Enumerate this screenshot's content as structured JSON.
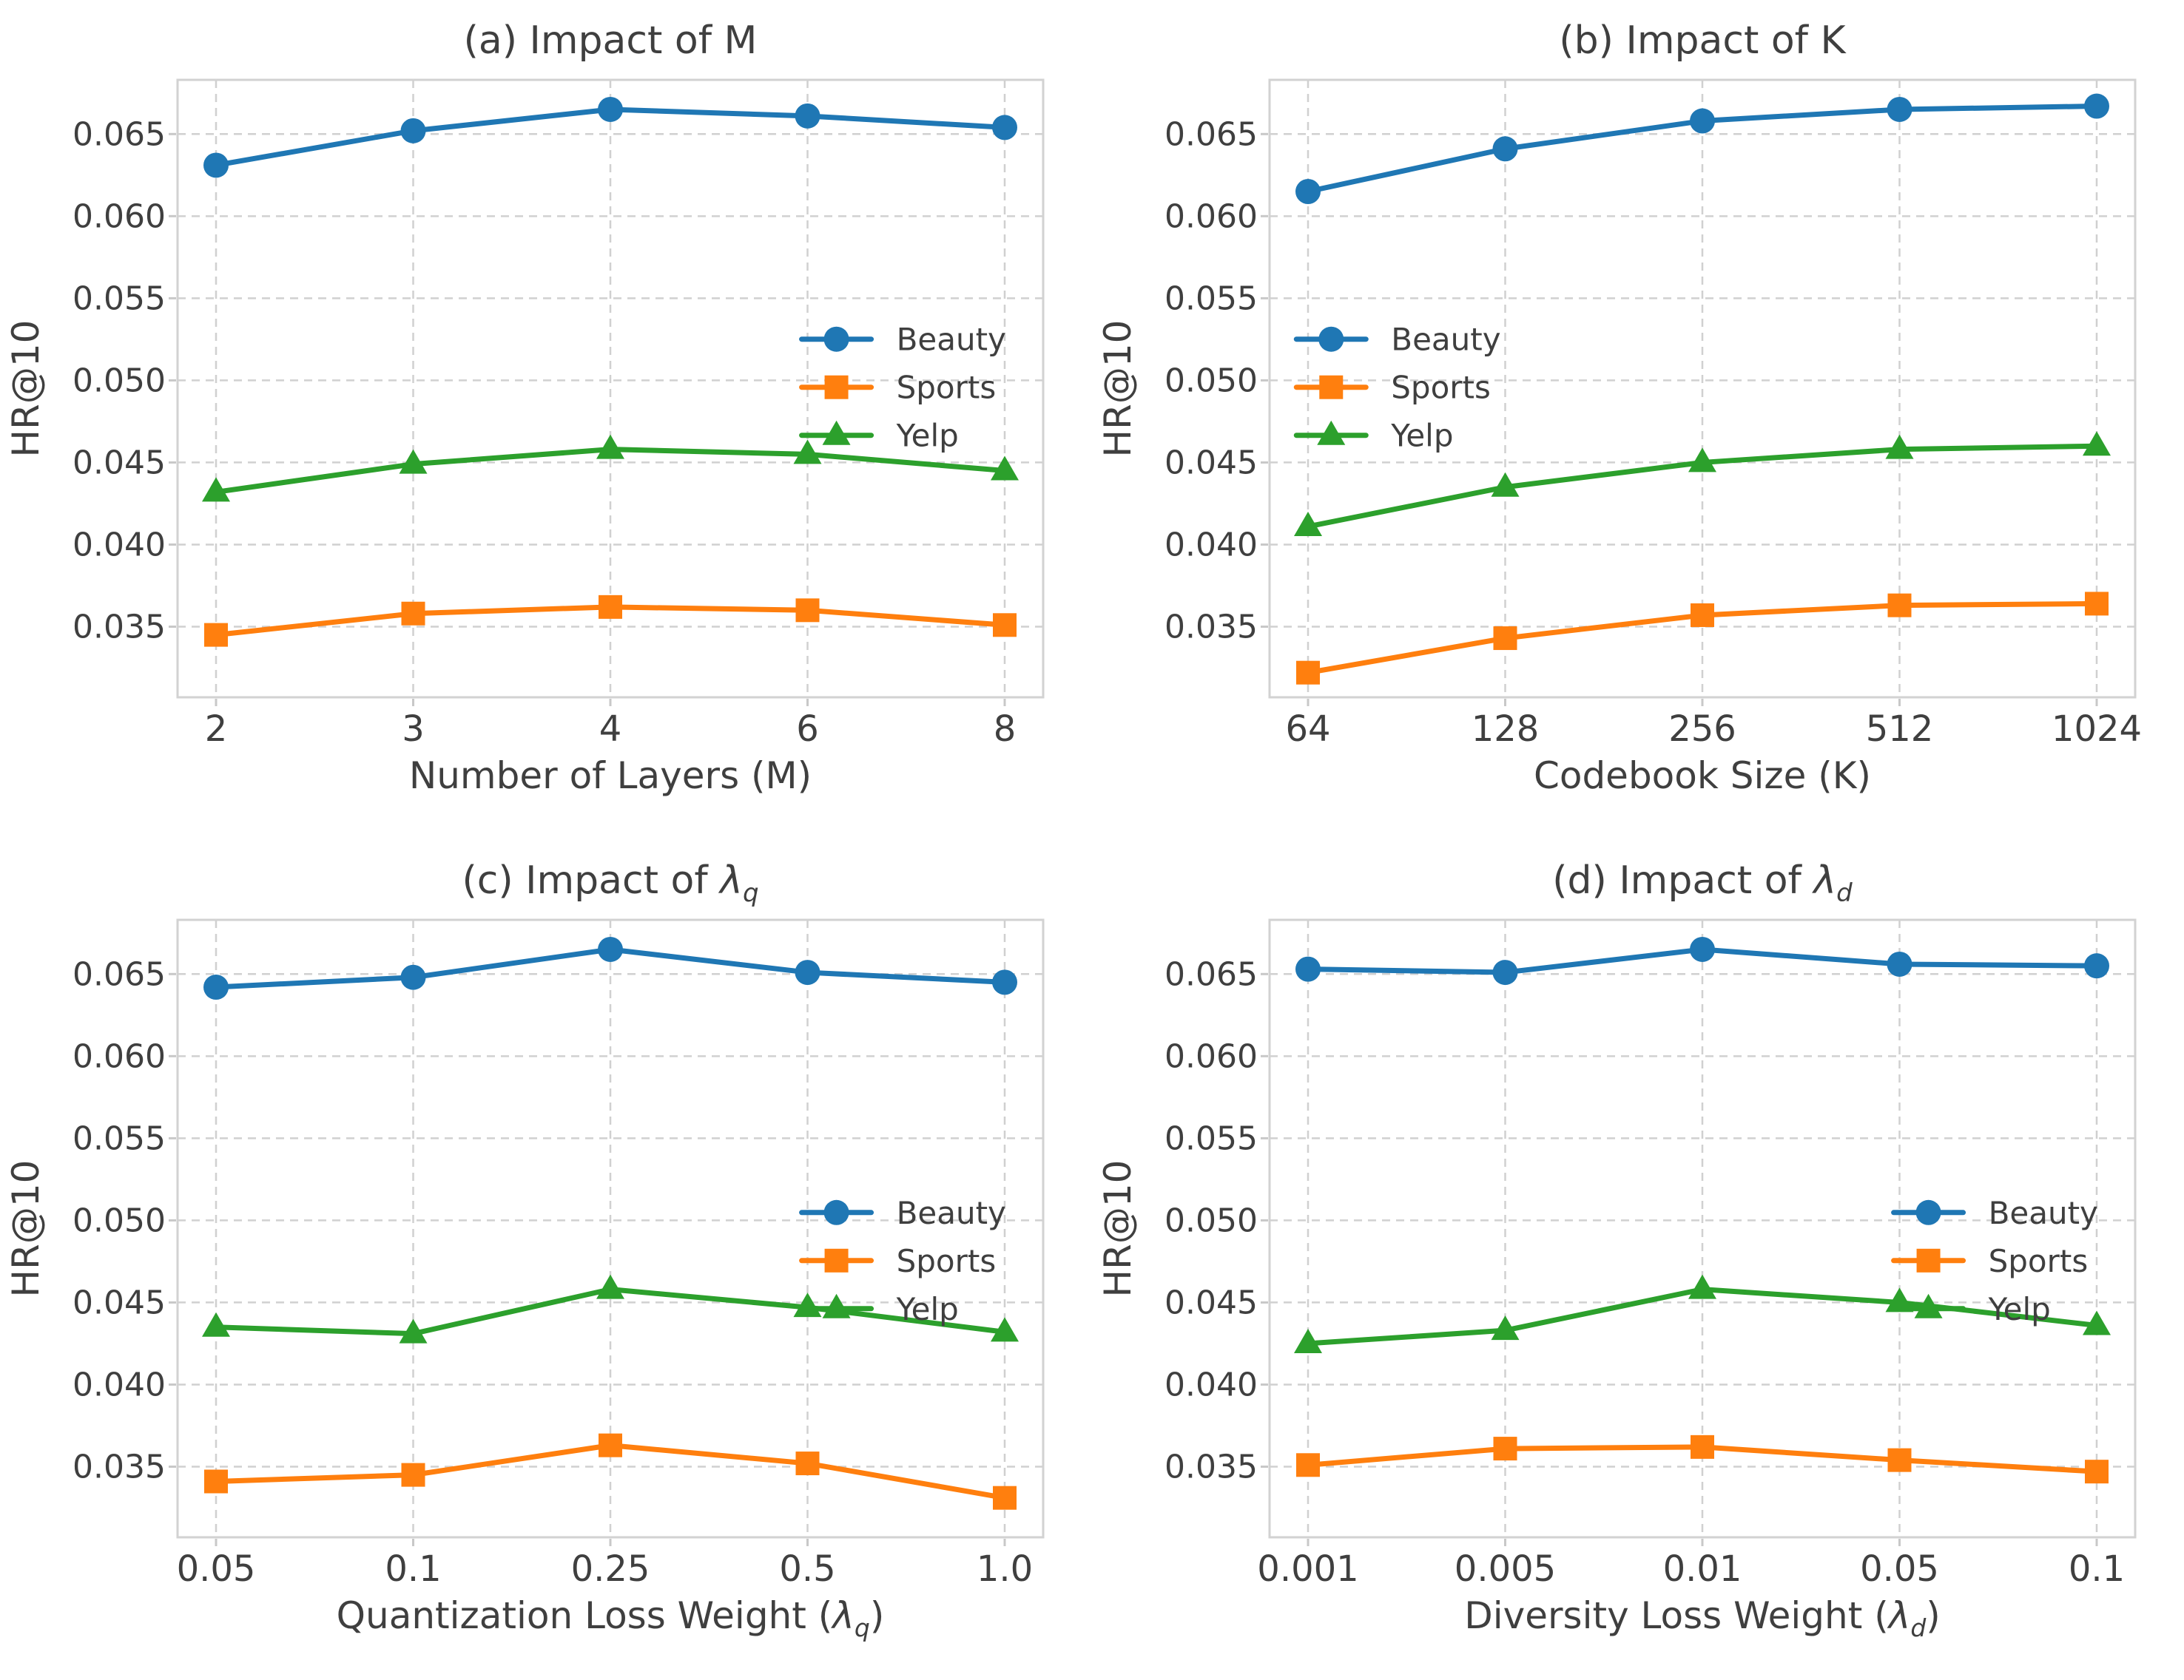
{
  "page": {
    "background": "#ffffff"
  },
  "figure": {
    "text_color": "#3f3f3f",
    "grid_color": "#d0d0d0",
    "spine_color": "#d2d2d2",
    "series_colors": {
      "Beauty": "#1f77b4",
      "Sports": "#ff7f0e",
      "Yelp": "#2ca02c"
    }
  },
  "chart_data": [
    {
      "id": "a",
      "type": "line",
      "title": "(a) Impact of M",
      "xlabel": "Number of Layers (M)",
      "ylabel": "HR@10",
      "categories": [
        "2",
        "3",
        "4",
        "6",
        "8"
      ],
      "yticks": [
        0.035,
        0.04,
        0.045,
        0.05,
        0.055,
        0.06,
        0.065
      ],
      "ytick_labels": [
        "0.035",
        "0.040",
        "0.045",
        "0.050",
        "0.055",
        "0.060",
        "0.065"
      ],
      "ylim": [
        0.0307,
        0.0683
      ],
      "grid": true,
      "legend": {
        "position": "center right",
        "anchor": [
          0.721,
          0.42
        ]
      },
      "series": [
        {
          "name": "Beauty",
          "color": "#1f77b4",
          "marker": "circle",
          "values": [
            0.0631,
            0.0652,
            0.0665,
            0.0661,
            0.0654
          ]
        },
        {
          "name": "Sports",
          "color": "#ff7f0e",
          "marker": "square",
          "values": [
            0.0345,
            0.0358,
            0.0362,
            0.036,
            0.0351
          ]
        },
        {
          "name": "Yelp",
          "color": "#2ca02c",
          "marker": "triangle",
          "values": [
            0.0432,
            0.0449,
            0.0458,
            0.0455,
            0.0445
          ]
        }
      ]
    },
    {
      "id": "b",
      "type": "line",
      "title": "(b) Impact of K",
      "xlabel": "Codebook Size (K)",
      "ylabel": "HR@10",
      "categories": [
        "64",
        "128",
        "256",
        "512",
        "1024"
      ],
      "yticks": [
        0.035,
        0.04,
        0.045,
        0.05,
        0.055,
        0.06,
        0.065
      ],
      "ytick_labels": [
        "0.035",
        "0.040",
        "0.045",
        "0.050",
        "0.055",
        "0.060",
        "0.065"
      ],
      "ylim": [
        0.0307,
        0.0683
      ],
      "grid": true,
      "legend": {
        "position": "center left",
        "anchor": [
          0.031,
          0.42
        ]
      },
      "series": [
        {
          "name": "Beauty",
          "color": "#1f77b4",
          "marker": "circle",
          "values": [
            0.0615,
            0.0641,
            0.0658,
            0.0665,
            0.0667
          ]
        },
        {
          "name": "Sports",
          "color": "#ff7f0e",
          "marker": "square",
          "values": [
            0.0322,
            0.0343,
            0.0357,
            0.0363,
            0.0364
          ]
        },
        {
          "name": "Yelp",
          "color": "#2ca02c",
          "marker": "triangle",
          "values": [
            0.0411,
            0.0435,
            0.045,
            0.0458,
            0.046
          ]
        }
      ]
    },
    {
      "id": "c",
      "type": "line",
      "title": "(c) Impact of λ_q",
      "xlabel": "Quantization Loss Weight (λ_q)",
      "ylabel": "HR@10",
      "categories": [
        "0.05",
        "0.1",
        "0.25",
        "0.5",
        "1.0"
      ],
      "yticks": [
        0.035,
        0.04,
        0.045,
        0.05,
        0.055,
        0.06,
        0.065
      ],
      "ytick_labels": [
        "0.035",
        "0.040",
        "0.045",
        "0.050",
        "0.055",
        "0.060",
        "0.065"
      ],
      "ylim": [
        0.0307,
        0.0683
      ],
      "grid": true,
      "legend": {
        "position": "center right",
        "anchor": [
          0.721,
          0.474
        ]
      },
      "series": [
        {
          "name": "Beauty",
          "color": "#1f77b4",
          "marker": "circle",
          "values": [
            0.0642,
            0.0648,
            0.0665,
            0.0651,
            0.0645
          ]
        },
        {
          "name": "Sports",
          "color": "#ff7f0e",
          "marker": "square",
          "values": [
            0.0341,
            0.0345,
            0.0363,
            0.0352,
            0.0331
          ]
        },
        {
          "name": "Yelp",
          "color": "#2ca02c",
          "marker": "triangle",
          "values": [
            0.0435,
            0.0431,
            0.0458,
            0.0447,
            0.0432
          ]
        }
      ]
    },
    {
      "id": "d",
      "type": "line",
      "title": "(d) Impact of λ_d",
      "xlabel": "Diversity Loss Weight (λ_d)",
      "ylabel": "HR@10",
      "categories": [
        "0.001",
        "0.005",
        "0.01",
        "0.05",
        "0.1"
      ],
      "yticks": [
        0.035,
        0.04,
        0.045,
        0.05,
        0.055,
        0.06,
        0.065
      ],
      "ytick_labels": [
        "0.035",
        "0.040",
        "0.045",
        "0.050",
        "0.055",
        "0.060",
        "0.065"
      ],
      "ylim": [
        0.0307,
        0.0683
      ],
      "grid": true,
      "legend": {
        "position": "center right",
        "anchor": [
          0.721,
          0.474
        ]
      },
      "series": [
        {
          "name": "Beauty",
          "color": "#1f77b4",
          "marker": "circle",
          "values": [
            0.0653,
            0.0651,
            0.0665,
            0.0656,
            0.0655
          ]
        },
        {
          "name": "Sports",
          "color": "#ff7f0e",
          "marker": "square",
          "values": [
            0.0351,
            0.0361,
            0.0362,
            0.0354,
            0.0347
          ]
        },
        {
          "name": "Yelp",
          "color": "#2ca02c",
          "marker": "triangle",
          "values": [
            0.0425,
            0.0433,
            0.0458,
            0.045,
            0.0436
          ]
        }
      ]
    }
  ]
}
